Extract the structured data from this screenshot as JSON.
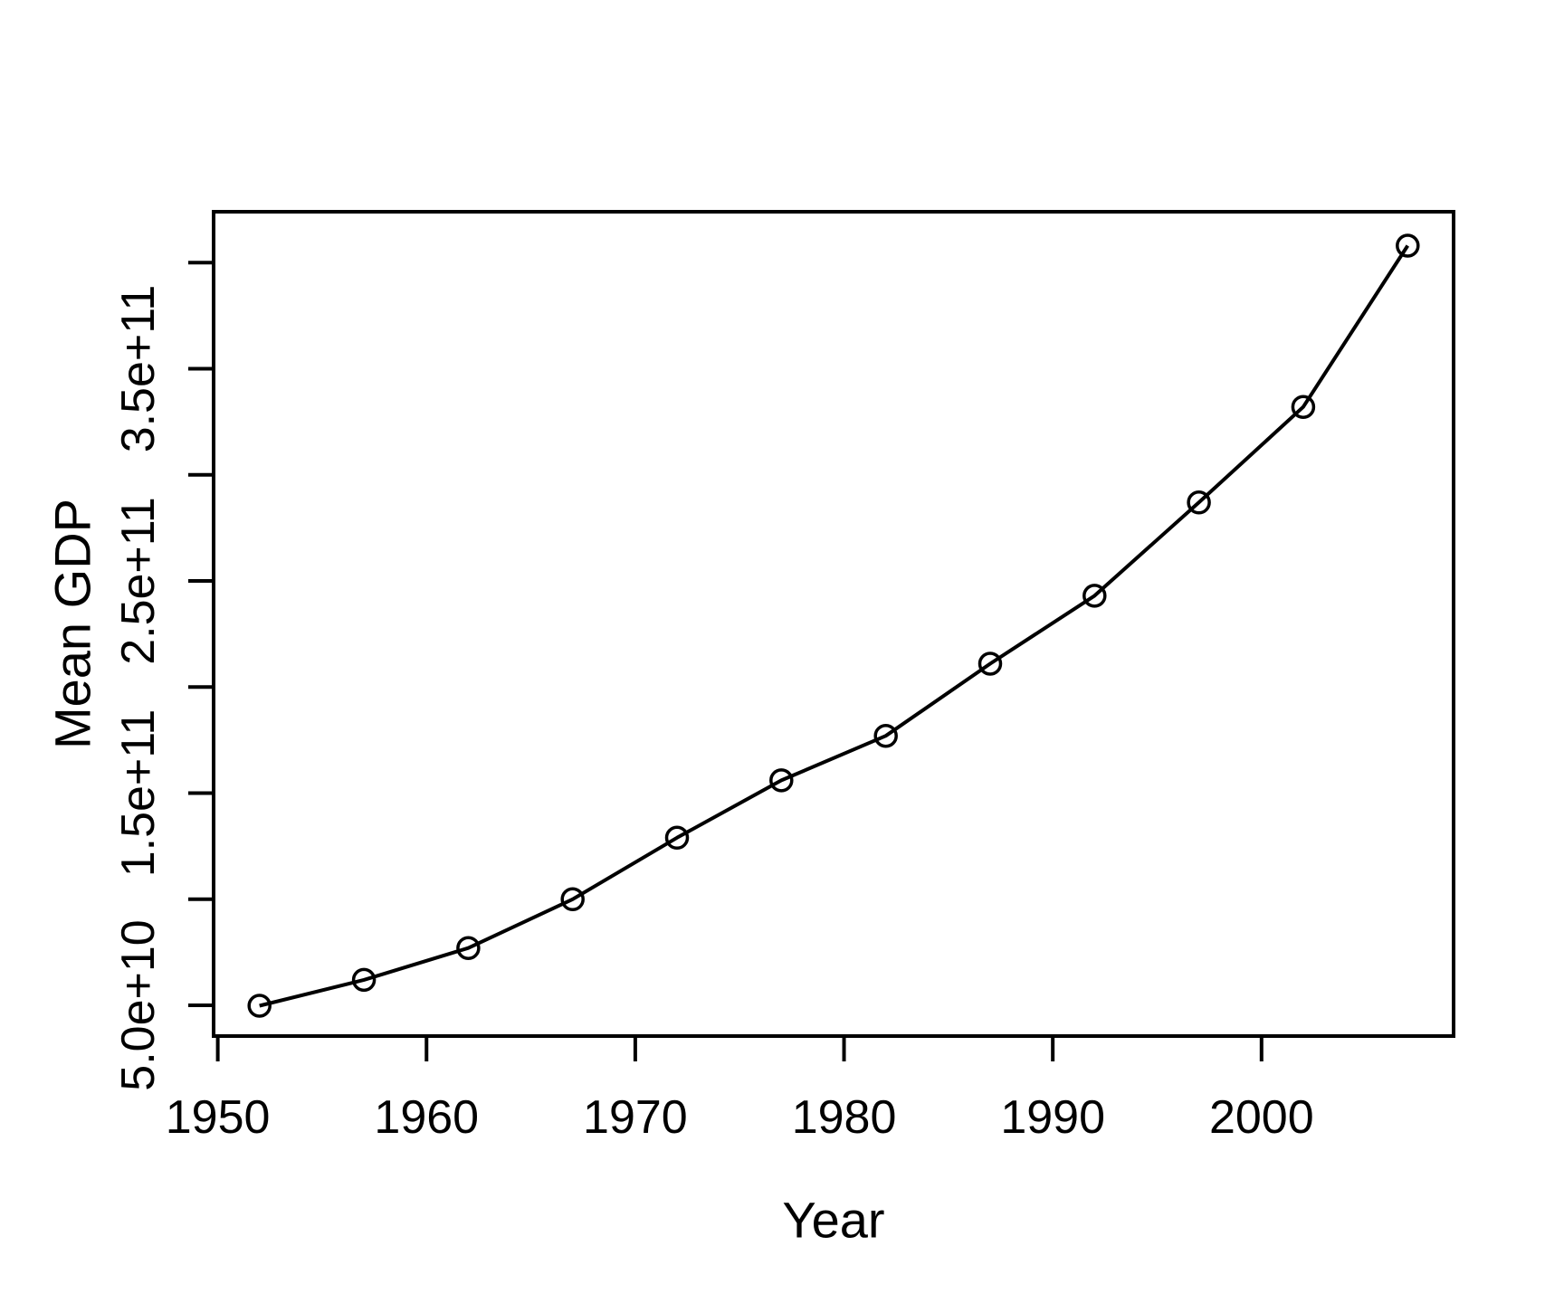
{
  "figure": {
    "background_color": "#ffffff",
    "foreground_color": "#000000"
  },
  "chart_data": {
    "type": "line",
    "title": "",
    "xlabel": "Year",
    "ylabel": "Mean GDP",
    "x": [
      1952,
      1957,
      1962,
      1967,
      1972,
      1977,
      1982,
      1987,
      1992,
      1997,
      2002,
      2007
    ],
    "series": [
      {
        "name": "Mean GDP",
        "values": [
          49800000000.0,
          62000000000.0,
          77000000000.0,
          100000000000.0,
          129000000000.0,
          156000000000.0,
          177000000000.0,
          211000000000.0,
          243000000000.0,
          287000000000.0,
          332000000000.0,
          408000000000.0
        ]
      }
    ],
    "xlim": [
      1949.8,
      2009.2
    ],
    "ylim": [
      35500000000.0,
      424000000000.0
    ],
    "x_ticks": {
      "values": [
        1950,
        1960,
        1970,
        1980,
        1990,
        2000
      ],
      "labels": [
        "1950",
        "1960",
        "1970",
        "1980",
        "1990",
        "2000"
      ]
    },
    "y_ticks": {
      "values": [
        50000000000.0,
        100000000000.0,
        150000000000.0,
        200000000000.0,
        250000000000.0,
        300000000000.0,
        350000000000.0,
        400000000000.0
      ],
      "labels": [
        "5.0e+10",
        "",
        "1.5e+11",
        "",
        "2.5e+11",
        "",
        "3.5e+11",
        ""
      ]
    },
    "grid": false,
    "legend_position": "none",
    "marker": "open-circle",
    "line_color": "#000000",
    "marker_color": "#000000"
  }
}
